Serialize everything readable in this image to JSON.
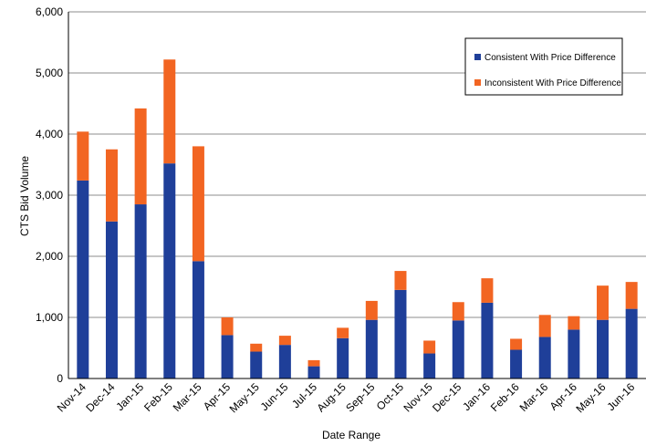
{
  "chart_data": {
    "type": "bar",
    "stacked": true,
    "xlabel": "Date Range",
    "ylabel": "CTS Bid Volume",
    "ylim": [
      0,
      6000
    ],
    "yticks": [
      0,
      1000,
      2000,
      3000,
      4000,
      5000,
      6000
    ],
    "ytick_labels": [
      "0",
      "1,000",
      "2,000",
      "3,000",
      "4,000",
      "5,000",
      "6,000"
    ],
    "grid": "horizontal",
    "legend_position": "top-right",
    "categories": [
      "Nov-14",
      "Dec-14",
      "Jan-15",
      "Feb-15",
      "Mar-15",
      "Apr-15",
      "May-15",
      "Jun-15",
      "Jul-15",
      "Aug-15",
      "Sep-15",
      "Oct-15",
      "Nov-15",
      "Dec-15",
      "Jan-16",
      "Feb-16",
      "Mar-16",
      "Apr-16",
      "May-16",
      "Jun-16"
    ],
    "series": [
      {
        "name": "Consistent With Price Difference",
        "color": "#1f3f99",
        "values": [
          3240,
          2570,
          2850,
          3520,
          1920,
          710,
          440,
          550,
          200,
          660,
          960,
          1450,
          410,
          950,
          1240,
          470,
          680,
          800,
          960,
          1140
        ]
      },
      {
        "name": "Inconsistent With Price Difference",
        "color": "#f26522",
        "values": [
          800,
          1180,
          1570,
          1700,
          1880,
          290,
          130,
          150,
          100,
          170,
          310,
          310,
          210,
          300,
          400,
          180,
          360,
          220,
          560,
          440
        ]
      }
    ]
  }
}
